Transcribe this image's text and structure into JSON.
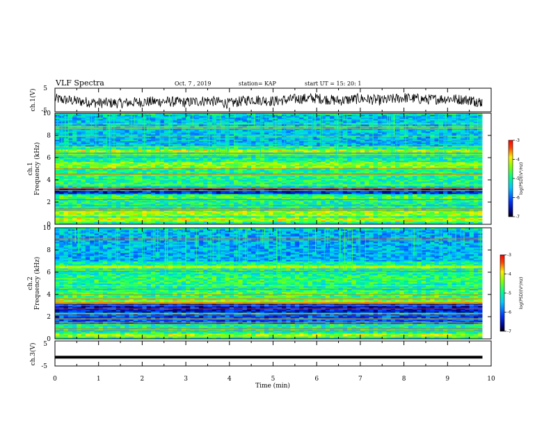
{
  "header": {
    "title": "VLF Spectra",
    "date": "Oct. 7 , 2019",
    "station": "station= KAP",
    "start": "start UT = 15: 20: 1"
  },
  "panels": {
    "ch1v": {
      "ylabel": "ch.1(V)",
      "ticks": [
        "5",
        "-5"
      ]
    },
    "ch1": {
      "ylabel_ch": "ch.1",
      "ylabel": "Frequency (kHz)",
      "ticks": [
        "0",
        "2",
        "4",
        "6",
        "8",
        "10"
      ]
    },
    "ch2": {
      "ylabel_ch": "ch.2",
      "ylabel": "Frequency (kHz)",
      "ticks": [
        "0",
        "2",
        "4",
        "6",
        "8",
        "10"
      ]
    },
    "ch3v": {
      "ylabel": "ch.3(V)",
      "ticks": [
        "5",
        "-5"
      ]
    }
  },
  "xaxis": {
    "label": "Time (min)",
    "ticks": [
      "0",
      "1",
      "2",
      "3",
      "4",
      "5",
      "6",
      "7",
      "8",
      "9",
      "10"
    ]
  },
  "colorbar": {
    "label": "log(PSD)(V²/Hz)",
    "ticks": [
      "-3",
      "-4",
      "-5",
      "-6",
      "-7"
    ]
  },
  "colors": {
    "spectrogram_low": "#0000aa",
    "spectrogram_mid": "#00ff88",
    "spectrogram_high": "#ff0000",
    "trace": "#000000"
  },
  "chart_data": [
    {
      "type": "line",
      "name": "ch.1 waveform",
      "ylabel": "ch.1(V)",
      "xlabel": "Time (min)",
      "xlim": [
        0,
        10
      ],
      "ylim": [
        -5,
        5
      ],
      "x": [
        0,
        0.5,
        1,
        1.5,
        2,
        2.5,
        3,
        3.5,
        4,
        4.5,
        5,
        5.5,
        6,
        6.5,
        7,
        7.5,
        8,
        8.5,
        9,
        9.5,
        9.8
      ],
      "y": [
        0.5,
        -0.5,
        -1.2,
        -1.3,
        -0.8,
        -0.6,
        -1.0,
        -0.2,
        -1.5,
        0.3,
        -0.5,
        0.4,
        0.8,
        -0.3,
        0.6,
        -0.2,
        1.0,
        0.2,
        0.6,
        0.0,
        -1.0
      ]
    },
    {
      "type": "heatmap",
      "name": "ch.1 spectrogram",
      "xlabel": "Time (min)",
      "ylabel": "Frequency (kHz)",
      "xlim": [
        0,
        10
      ],
      "ylim": [
        0,
        10
      ],
      "zlabel": "log(PSD)(V²/Hz)",
      "zlim": [
        -7,
        -3
      ],
      "bands_kHz": [
        {
          "f": [
            0.3,
            0.6
          ],
          "log_psd": -4.2
        },
        {
          "f": [
            0.8,
            1.2
          ],
          "log_psd": -4.3
        },
        {
          "f": [
            2.2,
            2.6
          ],
          "log_psd": -4.8
        },
        {
          "f": [
            2.8,
            3.4
          ],
          "log_psd": -6.5
        },
        {
          "f": [
            3.6,
            4.8
          ],
          "log_psd": -5.0
        },
        {
          "f": [
            5.0,
            5.6
          ],
          "log_psd": -4.5
        },
        {
          "f": [
            6.5,
            6.7
          ],
          "log_psd": -4.2
        },
        {
          "f": [
            7.0,
            9.9
          ],
          "log_psd": -5.6
        }
      ]
    },
    {
      "type": "heatmap",
      "name": "ch.2 spectrogram",
      "xlabel": "Time (min)",
      "ylabel": "Frequency (kHz)",
      "xlim": [
        0,
        10
      ],
      "ylim": [
        0,
        10
      ],
      "zlabel": "log(PSD)(V²/Hz)",
      "zlim": [
        -7,
        -3
      ],
      "bands_kHz": [
        {
          "f": [
            0.2,
            0.5
          ],
          "log_psd": -4.3
        },
        {
          "f": [
            1.4,
            2.2
          ],
          "log_psd": -6.3
        },
        {
          "f": [
            2.4,
            3.2
          ],
          "log_psd": -6.6
        },
        {
          "f": [
            3.3,
            3.5
          ],
          "log_psd": -4.2
        },
        {
          "f": [
            3.8,
            4.4
          ],
          "log_psd": -4.8
        },
        {
          "f": [
            5.0,
            5.8
          ],
          "log_psd": -4.9
        },
        {
          "f": [
            6.4,
            6.6
          ],
          "log_psd": -4.2
        },
        {
          "f": [
            7.0,
            9.9
          ],
          "log_psd": -5.7
        }
      ]
    },
    {
      "type": "line",
      "name": "ch.3 waveform",
      "ylabel": "ch.3(V)",
      "xlabel": "Time (min)",
      "xlim": [
        0,
        10
      ],
      "ylim": [
        -5,
        5
      ],
      "x": [
        0,
        9.8
      ],
      "y": [
        -1.5,
        -1.5
      ]
    }
  ]
}
